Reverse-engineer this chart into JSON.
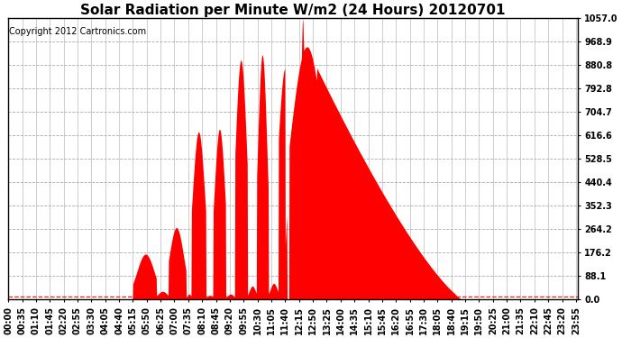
{
  "title": "Solar Radiation per Minute W/m2 (24 Hours) 20120701",
  "copyright": "Copyright 2012 Cartronics.com",
  "fill_color": "#FF0000",
  "bg_color": "#FFFFFF",
  "grid_color": "#AAAAAA",
  "ymax": 1057.0,
  "yticks": [
    0.0,
    88.1,
    176.2,
    264.2,
    352.3,
    440.4,
    528.5,
    616.6,
    704.7,
    792.8,
    880.8,
    968.9,
    1057.0
  ],
  "ytick_labels": [
    "0.0",
    "88.1",
    "176.2",
    "264.2",
    "352.3",
    "440.4",
    "528.5",
    "616.6",
    "704.7",
    "792.8",
    "880.8",
    "968.9",
    "1057.0"
  ],
  "hline_y": 12,
  "hline_color": "#FF0000",
  "total_minutes": 1440,
  "title_fontsize": 11,
  "copyright_fontsize": 7,
  "tick_fontsize": 7,
  "xtick_step": 35
}
